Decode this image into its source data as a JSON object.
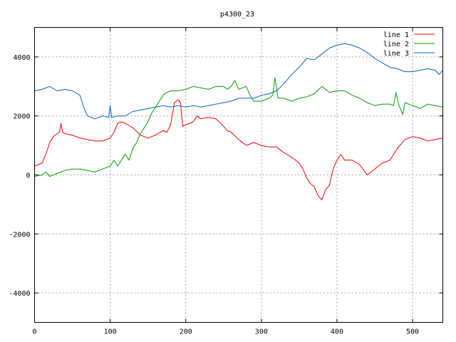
{
  "chart_data": {
    "type": "line",
    "title": "p4300_23",
    "xlabel": "",
    "ylabel": "",
    "xlim": [
      0,
      540
    ],
    "ylim": [
      -5000,
      5000
    ],
    "xticks": [
      0,
      100,
      200,
      300,
      400,
      500
    ],
    "yticks": [
      -4000,
      -2000,
      0,
      2000,
      4000
    ],
    "grid": true,
    "legend_position": "top-right",
    "series": [
      {
        "name": "line 1",
        "color": "#ff0000",
        "points": [
          [
            0,
            300
          ],
          [
            5,
            350
          ],
          [
            10,
            400
          ],
          [
            15,
            700
          ],
          [
            20,
            1100
          ],
          [
            25,
            1300
          ],
          [
            30,
            1400
          ],
          [
            33,
            1450
          ],
          [
            35,
            1750
          ],
          [
            37,
            1450
          ],
          [
            40,
            1400
          ],
          [
            50,
            1350
          ],
          [
            60,
            1250
          ],
          [
            70,
            1200
          ],
          [
            80,
            1150
          ],
          [
            90,
            1150
          ],
          [
            100,
            1250
          ],
          [
            105,
            1450
          ],
          [
            110,
            1750
          ],
          [
            115,
            1800
          ],
          [
            120,
            1750
          ],
          [
            130,
            1600
          ],
          [
            140,
            1350
          ],
          [
            150,
            1250
          ],
          [
            160,
            1350
          ],
          [
            170,
            1500
          ],
          [
            175,
            1450
          ],
          [
            180,
            1700
          ],
          [
            185,
            2450
          ],
          [
            190,
            2550
          ],
          [
            193,
            2450
          ],
          [
            196,
            1650
          ],
          [
            200,
            1700
          ],
          [
            210,
            1800
          ],
          [
            215,
            2000
          ],
          [
            220,
            1900
          ],
          [
            230,
            1950
          ],
          [
            240,
            1900
          ],
          [
            250,
            1650
          ],
          [
            255,
            1500
          ],
          [
            260,
            1450
          ],
          [
            270,
            1200
          ],
          [
            280,
            1000
          ],
          [
            290,
            1100
          ],
          [
            300,
            1000
          ],
          [
            310,
            950
          ],
          [
            320,
            950
          ],
          [
            330,
            750
          ],
          [
            340,
            600
          ],
          [
            350,
            400
          ],
          [
            355,
            200
          ],
          [
            360,
            -100
          ],
          [
            365,
            -300
          ],
          [
            370,
            -400
          ],
          [
            375,
            -700
          ],
          [
            380,
            -850
          ],
          [
            385,
            -500
          ],
          [
            390,
            -350
          ],
          [
            395,
            200
          ],
          [
            400,
            500
          ],
          [
            405,
            700
          ],
          [
            410,
            500
          ],
          [
            420,
            500
          ],
          [
            430,
            350
          ],
          [
            440,
            0
          ],
          [
            450,
            200
          ],
          [
            460,
            400
          ],
          [
            470,
            500
          ],
          [
            475,
            700
          ],
          [
            480,
            900
          ],
          [
            490,
            1200
          ],
          [
            500,
            1300
          ],
          [
            510,
            1250
          ],
          [
            520,
            1150
          ],
          [
            530,
            1200
          ],
          [
            540,
            1250
          ]
        ]
      },
      {
        "name": "line 2",
        "color": "#00a000",
        "points": [
          [
            0,
            -50
          ],
          [
            10,
            0
          ],
          [
            15,
            100
          ],
          [
            20,
            -50
          ],
          [
            30,
            50
          ],
          [
            40,
            150
          ],
          [
            50,
            200
          ],
          [
            60,
            200
          ],
          [
            70,
            150
          ],
          [
            80,
            100
          ],
          [
            90,
            200
          ],
          [
            100,
            300
          ],
          [
            105,
            500
          ],
          [
            110,
            300
          ],
          [
            115,
            500
          ],
          [
            120,
            700
          ],
          [
            125,
            500
          ],
          [
            130,
            900
          ],
          [
            135,
            1100
          ],
          [
            140,
            1400
          ],
          [
            145,
            1600
          ],
          [
            150,
            1800
          ],
          [
            155,
            2100
          ],
          [
            160,
            2300
          ],
          [
            165,
            2500
          ],
          [
            170,
            2700
          ],
          [
            175,
            2800
          ],
          [
            180,
            2850
          ],
          [
            190,
            2850
          ],
          [
            200,
            2900
          ],
          [
            210,
            3000
          ],
          [
            220,
            2950
          ],
          [
            230,
            2900
          ],
          [
            240,
            3000
          ],
          [
            250,
            3000
          ],
          [
            255,
            2900
          ],
          [
            260,
            3000
          ],
          [
            265,
            3200
          ],
          [
            270,
            2900
          ],
          [
            280,
            3000
          ],
          [
            285,
            2700
          ],
          [
            290,
            2500
          ],
          [
            300,
            2500
          ],
          [
            310,
            2600
          ],
          [
            315,
            2700
          ],
          [
            318,
            3300
          ],
          [
            322,
            2600
          ],
          [
            330,
            2600
          ],
          [
            340,
            2500
          ],
          [
            350,
            2600
          ],
          [
            360,
            2650
          ],
          [
            370,
            2750
          ],
          [
            380,
            3000
          ],
          [
            390,
            2800
          ],
          [
            400,
            2850
          ],
          [
            410,
            2850
          ],
          [
            420,
            2700
          ],
          [
            430,
            2600
          ],
          [
            440,
            2450
          ],
          [
            450,
            2350
          ],
          [
            460,
            2400
          ],
          [
            470,
            2400
          ],
          [
            475,
            2350
          ],
          [
            478,
            2800
          ],
          [
            482,
            2350
          ],
          [
            487,
            2050
          ],
          [
            490,
            2450
          ],
          [
            500,
            2350
          ],
          [
            510,
            2250
          ],
          [
            520,
            2400
          ],
          [
            530,
            2350
          ],
          [
            540,
            2300
          ]
        ]
      },
      {
        "name": "line 3",
        "color": "#0066cc",
        "points": [
          [
            0,
            2850
          ],
          [
            10,
            2900
          ],
          [
            20,
            3000
          ],
          [
            30,
            2850
          ],
          [
            40,
            2900
          ],
          [
            50,
            2850
          ],
          [
            60,
            2700
          ],
          [
            65,
            2300
          ],
          [
            70,
            2000
          ],
          [
            80,
            1900
          ],
          [
            90,
            2000
          ],
          [
            98,
            1950
          ],
          [
            100,
            2350
          ],
          [
            102,
            1950
          ],
          [
            110,
            2000
          ],
          [
            120,
            2000
          ],
          [
            130,
            2150
          ],
          [
            140,
            2200
          ],
          [
            150,
            2250
          ],
          [
            160,
            2300
          ],
          [
            170,
            2350
          ],
          [
            180,
            2300
          ],
          [
            190,
            2350
          ],
          [
            200,
            2300
          ],
          [
            210,
            2350
          ],
          [
            220,
            2300
          ],
          [
            230,
            2350
          ],
          [
            240,
            2400
          ],
          [
            250,
            2450
          ],
          [
            260,
            2500
          ],
          [
            270,
            2600
          ],
          [
            280,
            2600
          ],
          [
            290,
            2600
          ],
          [
            300,
            2700
          ],
          [
            310,
            2750
          ],
          [
            320,
            2850
          ],
          [
            330,
            3100
          ],
          [
            340,
            3400
          ],
          [
            350,
            3650
          ],
          [
            360,
            3950
          ],
          [
            370,
            3900
          ],
          [
            380,
            4100
          ],
          [
            390,
            4300
          ],
          [
            400,
            4400
          ],
          [
            410,
            4450
          ],
          [
            420,
            4400
          ],
          [
            430,
            4300
          ],
          [
            440,
            4150
          ],
          [
            450,
            3950
          ],
          [
            460,
            3800
          ],
          [
            470,
            3650
          ],
          [
            480,
            3600
          ],
          [
            490,
            3500
          ],
          [
            500,
            3500
          ],
          [
            510,
            3550
          ],
          [
            520,
            3600
          ],
          [
            530,
            3550
          ],
          [
            535,
            3400
          ],
          [
            540,
            3550
          ]
        ]
      }
    ]
  }
}
